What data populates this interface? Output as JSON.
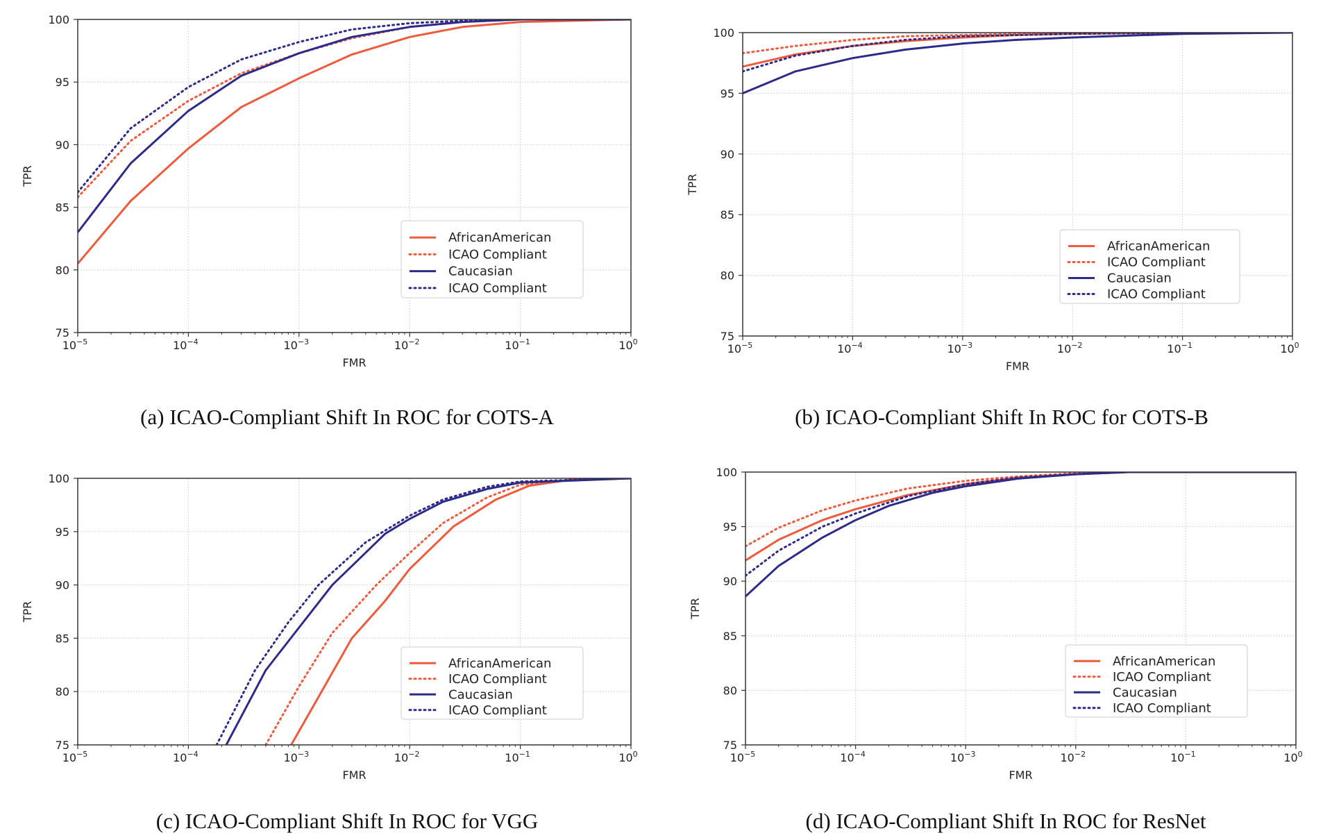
{
  "colors": {
    "african_american": "#f05a3c",
    "caucasian": "#2c2a8a",
    "grid": "#d4d4d4",
    "axis": "#333333"
  },
  "chart_data": [
    {
      "type": "line",
      "panel": "a",
      "caption": "(a) ICAO-Compliant Shift In ROC for COTS-A",
      "xlabel": "FMR",
      "ylabel": "TPR",
      "xscale": "log",
      "xlim": [
        1e-05,
        1
      ],
      "ylim": [
        75,
        100
      ],
      "xticks": [
        1e-05,
        0.0001,
        0.001,
        0.01,
        0.1,
        1
      ],
      "xtick_labels": [
        {
          "base": "10",
          "exp": "−5"
        },
        {
          "base": "10",
          "exp": "−4"
        },
        {
          "base": "10",
          "exp": "−3"
        },
        {
          "base": "10",
          "exp": "−2"
        },
        {
          "base": "10",
          "exp": "−1"
        },
        {
          "base": "10",
          "exp": "0"
        }
      ],
      "yticks": [
        "75",
        "80",
        "85",
        "90",
        "95",
        "100"
      ],
      "grid": true,
      "legend_position": "lower right",
      "series": [
        {
          "name": "AfricanAmerican",
          "style": "solid",
          "color_key": "african_american",
          "x": [
            1e-05,
            3e-05,
            0.0001,
            0.0003,
            0.001,
            0.003,
            0.01,
            0.03,
            0.1,
            1
          ],
          "y": [
            80.5,
            85.5,
            89.7,
            93.0,
            95.3,
            97.2,
            98.6,
            99.4,
            99.8,
            100
          ]
        },
        {
          "name": "ICAO Compliant",
          "style": "dotted",
          "color_key": "african_american",
          "x": [
            1e-05,
            3e-05,
            0.0001,
            0.0003,
            0.001,
            0.003,
            0.01,
            0.03,
            0.1,
            1
          ],
          "y": [
            85.8,
            90.3,
            93.5,
            95.7,
            97.3,
            98.5,
            99.4,
            99.8,
            100,
            100
          ]
        },
        {
          "name": "Caucasian",
          "style": "solid",
          "color_key": "caucasian",
          "x": [
            1e-05,
            3e-05,
            0.0001,
            0.0003,
            0.001,
            0.003,
            0.01,
            0.03,
            0.1,
            1
          ],
          "y": [
            83.0,
            88.5,
            92.7,
            95.5,
            97.3,
            98.6,
            99.4,
            99.8,
            100,
            100
          ]
        },
        {
          "name": "ICAO Compliant",
          "style": "dotted",
          "color_key": "caucasian",
          "x": [
            1e-05,
            3e-05,
            0.0001,
            0.0003,
            0.001,
            0.003,
            0.01,
            0.03,
            0.1,
            1
          ],
          "y": [
            86.2,
            91.3,
            94.6,
            96.8,
            98.2,
            99.2,
            99.7,
            99.9,
            100,
            100
          ]
        }
      ]
    },
    {
      "type": "line",
      "panel": "b",
      "caption": "(b) ICAO-Compliant Shift In ROC for COTS-B",
      "xlabel": "FMR",
      "ylabel": "TPR",
      "xscale": "log",
      "xlim": [
        1e-05,
        1
      ],
      "ylim": [
        75,
        100
      ],
      "xticks": [
        1e-05,
        0.0001,
        0.001,
        0.01,
        0.1,
        1
      ],
      "xtick_labels": [
        {
          "base": "10",
          "exp": "−5"
        },
        {
          "base": "10",
          "exp": "−4"
        },
        {
          "base": "10",
          "exp": "−3"
        },
        {
          "base": "10",
          "exp": "−2"
        },
        {
          "base": "10",
          "exp": "−1"
        },
        {
          "base": "10",
          "exp": "0"
        }
      ],
      "yticks": [
        "75",
        "80",
        "85",
        "90",
        "95",
        "100"
      ],
      "grid": true,
      "legend_position": "lower right",
      "series": [
        {
          "name": "AfricanAmerican",
          "style": "solid",
          "color_key": "african_american",
          "x": [
            1e-05,
            3e-05,
            0.0001,
            0.0003,
            0.001,
            0.003,
            0.01,
            0.1,
            1
          ],
          "y": [
            97.2,
            98.2,
            98.9,
            99.3,
            99.6,
            99.8,
            99.9,
            100,
            100
          ]
        },
        {
          "name": "ICAO Compliant",
          "style": "dotted",
          "color_key": "african_american",
          "x": [
            1e-05,
            3e-05,
            0.0001,
            0.0003,
            0.001,
            0.003,
            0.01,
            0.1,
            1
          ],
          "y": [
            98.3,
            98.9,
            99.4,
            99.7,
            99.8,
            99.9,
            100,
            100,
            100
          ]
        },
        {
          "name": "Caucasian",
          "style": "solid",
          "color_key": "caucasian",
          "x": [
            1e-05,
            3e-05,
            0.0001,
            0.0003,
            0.001,
            0.003,
            0.01,
            0.1,
            1
          ],
          "y": [
            95.0,
            96.8,
            97.9,
            98.6,
            99.1,
            99.4,
            99.6,
            99.9,
            100
          ]
        },
        {
          "name": "ICAO Compliant",
          "style": "dotted",
          "color_key": "caucasian",
          "x": [
            1e-05,
            3e-05,
            0.0001,
            0.0003,
            0.001,
            0.003,
            0.01,
            0.1,
            1
          ],
          "y": [
            96.8,
            98.1,
            98.9,
            99.4,
            99.7,
            99.8,
            99.9,
            100,
            100
          ]
        }
      ]
    },
    {
      "type": "line",
      "panel": "c",
      "caption": "(c) ICAO-Compliant Shift In ROC for VGG",
      "xlabel": "FMR",
      "ylabel": "TPR",
      "xscale": "log",
      "xlim": [
        1e-05,
        1
      ],
      "ylim": [
        75,
        100
      ],
      "xticks": [
        1e-05,
        0.0001,
        0.001,
        0.01,
        0.1,
        1
      ],
      "xtick_labels": [
        {
          "base": "10",
          "exp": "−5"
        },
        {
          "base": "10",
          "exp": "−4"
        },
        {
          "base": "10",
          "exp": "−3"
        },
        {
          "base": "10",
          "exp": "−2"
        },
        {
          "base": "10",
          "exp": "−1"
        },
        {
          "base": "10",
          "exp": "0"
        }
      ],
      "yticks": [
        "75",
        "80",
        "85",
        "90",
        "95",
        "100"
      ],
      "grid": true,
      "legend_position": "lower right",
      "series": [
        {
          "name": "AfricanAmerican",
          "style": "solid",
          "color_key": "african_american",
          "x": [
            0.00085,
            0.0015,
            0.003,
            0.006,
            0.01,
            0.025,
            0.06,
            0.12,
            0.3,
            1
          ],
          "y": [
            75,
            79.5,
            85.0,
            88.5,
            91.5,
            95.5,
            98.0,
            99.3,
            99.9,
            100
          ]
        },
        {
          "name": "ICAO Compliant",
          "style": "dotted",
          "color_key": "african_american",
          "x": [
            0.0005,
            0.001,
            0.002,
            0.005,
            0.01,
            0.02,
            0.05,
            0.1,
            0.3,
            1
          ],
          "y": [
            75,
            80.5,
            85.5,
            90.0,
            93.0,
            95.8,
            98.2,
            99.4,
            99.9,
            100
          ]
        },
        {
          "name": "Caucasian",
          "style": "solid",
          "color_key": "caucasian",
          "x": [
            0.00022,
            0.0005,
            0.001,
            0.002,
            0.006,
            0.01,
            0.02,
            0.05,
            0.1,
            1
          ],
          "y": [
            75,
            82.0,
            86.0,
            90.0,
            94.8,
            96.2,
            97.8,
            99.0,
            99.6,
            100
          ]
        },
        {
          "name": "ICAO Compliant",
          "style": "dotted",
          "color_key": "caucasian",
          "x": [
            0.00018,
            0.0004,
            0.0008,
            0.0015,
            0.004,
            0.01,
            0.02,
            0.05,
            0.1,
            1
          ],
          "y": [
            75,
            82.0,
            86.5,
            90.0,
            94.0,
            96.5,
            98.0,
            99.2,
            99.7,
            100
          ]
        }
      ]
    },
    {
      "type": "line",
      "panel": "d",
      "caption": "(d) ICAO-Compliant Shift In ROC for ResNet",
      "xlabel": "FMR",
      "ylabel": "TPR",
      "xscale": "log",
      "xlim": [
        1e-05,
        1
      ],
      "ylim": [
        75,
        100
      ],
      "xticks": [
        1e-05,
        0.0001,
        0.001,
        0.01,
        0.1,
        1
      ],
      "xtick_labels": [
        {
          "base": "10",
          "exp": "−5"
        },
        {
          "base": "10",
          "exp": "−4"
        },
        {
          "base": "10",
          "exp": "−3"
        },
        {
          "base": "10",
          "exp": "−2"
        },
        {
          "base": "10",
          "exp": "−1"
        },
        {
          "base": "10",
          "exp": "0"
        }
      ],
      "yticks": [
        "75",
        "80",
        "85",
        "90",
        "95",
        "100"
      ],
      "grid": true,
      "legend_position": "lower right",
      "series": [
        {
          "name": "AfricanAmerican",
          "style": "solid",
          "color_key": "african_american",
          "x": [
            1e-05,
            2e-05,
            5e-05,
            0.0001,
            0.0003,
            0.001,
            0.003,
            0.01,
            0.03,
            0.1,
            1
          ],
          "y": [
            91.9,
            93.8,
            95.6,
            96.6,
            97.9,
            98.9,
            99.5,
            99.8,
            100,
            100,
            100
          ]
        },
        {
          "name": "ICAO Compliant",
          "style": "dotted",
          "color_key": "african_american",
          "x": [
            1e-05,
            2e-05,
            5e-05,
            0.0001,
            0.0003,
            0.001,
            0.003,
            0.01,
            0.03,
            0.1,
            1
          ],
          "y": [
            93.2,
            94.9,
            96.5,
            97.4,
            98.5,
            99.2,
            99.6,
            99.9,
            100,
            100,
            100
          ]
        },
        {
          "name": "Caucasian",
          "style": "solid",
          "color_key": "caucasian",
          "x": [
            1e-05,
            2e-05,
            5e-05,
            0.0001,
            0.0002,
            0.0005,
            0.001,
            0.003,
            0.01,
            0.03,
            0.1,
            1
          ],
          "y": [
            88.6,
            91.4,
            94.0,
            95.6,
            96.9,
            98.1,
            98.7,
            99.4,
            99.8,
            100,
            100,
            100
          ]
        },
        {
          "name": "ICAO Compliant",
          "style": "dotted",
          "color_key": "caucasian",
          "x": [
            1e-05,
            2e-05,
            5e-05,
            0.0001,
            0.0003,
            0.001,
            0.003,
            0.01,
            0.03,
            0.1,
            1
          ],
          "y": [
            90.5,
            92.8,
            95.0,
            96.2,
            97.8,
            98.9,
            99.5,
            99.8,
            100,
            100,
            100
          ]
        }
      ]
    }
  ]
}
